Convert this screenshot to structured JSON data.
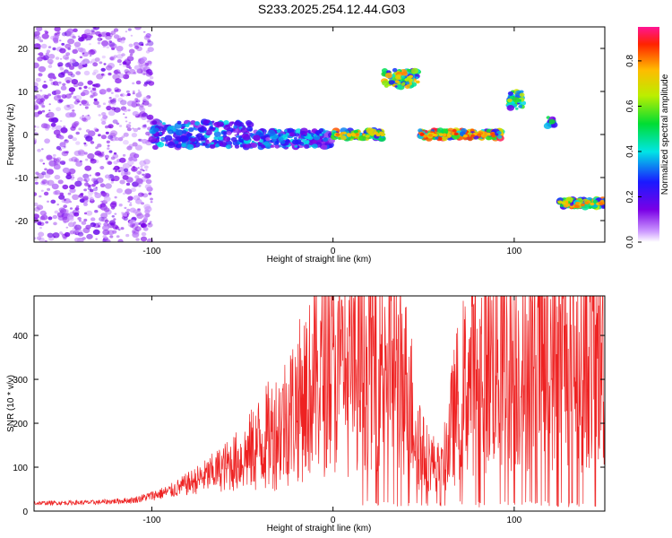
{
  "title": "S233.2025.254.12.44.G03",
  "colors": {
    "snr_line": "#ee2222",
    "frame": "#000000",
    "background": "#ffffff"
  },
  "chart_data": [
    {
      "type": "heatmap",
      "xlabel": "Height of straight line (km)",
      "ylabel": "Frequency (Hz)",
      "xlim": [
        -165,
        150
      ],
      "ylim": [
        -25,
        25
      ],
      "xticks": [
        -100,
        0,
        100
      ],
      "yticks": [
        -20,
        -10,
        0,
        10,
        20
      ],
      "colorbar": {
        "label": "Normalized spectral amplitude",
        "range": [
          0,
          0.95
        ],
        "ticks": [
          0.0,
          0.2,
          0.4,
          0.6,
          0.8
        ]
      },
      "features": [
        {
          "x0": -165,
          "x1": -100,
          "freq_center": 0,
          "freq_spread": 25,
          "amplitude": 0.15,
          "note": "diffuse noise"
        },
        {
          "x0": -100,
          "x1": -45,
          "freq_center": 0,
          "freq_spread": 3,
          "amplitude": 0.35
        },
        {
          "x0": -45,
          "x1": 0,
          "freq_center": -1,
          "freq_spread": 2,
          "amplitude": 0.35
        },
        {
          "x0": 0,
          "x1": 28,
          "freq_center": 0,
          "freq_spread": 1,
          "amplitude": 0.75
        },
        {
          "x0": 28,
          "x1": 47,
          "freq_center": 13,
          "freq_spread": 2,
          "amplitude": 0.7
        },
        {
          "x0": 48,
          "x1": 93,
          "freq_center": 0,
          "freq_spread": 1,
          "amplitude": 0.8
        },
        {
          "x0": 96,
          "x1": 105,
          "freq_center": 8,
          "freq_spread": 2,
          "amplitude": 0.6
        },
        {
          "x0": 118,
          "x1": 122,
          "freq_center": 3,
          "freq_spread": 1,
          "amplitude": 0.5
        },
        {
          "x0": 125,
          "x1": 150,
          "freq_center": -16,
          "freq_spread": 1,
          "amplitude": 0.75
        }
      ]
    },
    {
      "type": "line",
      "xlabel": "Height of straight line (km)",
      "ylabel": "SNR (10 * v/v)",
      "xlim": [
        -165,
        150
      ],
      "ylim": [
        0,
        490
      ],
      "xticks": [
        -100,
        0,
        100
      ],
      "yticks": [
        0,
        100,
        200,
        300,
        400
      ],
      "series": [
        {
          "name": "SNR",
          "envelope_x": [
            -165,
            -130,
            -110,
            -90,
            -70,
            -50,
            -30,
            -15,
            -5,
            5,
            15,
            25,
            30,
            40,
            50,
            60,
            70,
            80,
            90,
            100,
            110,
            120,
            130,
            150
          ],
          "envelope_y": [
            18,
            20,
            25,
            45,
            80,
            120,
            190,
            270,
            310,
            300,
            330,
            365,
            370,
            290,
            130,
            95,
            270,
            330,
            340,
            325,
            340,
            350,
            355,
            345
          ]
        }
      ]
    }
  ]
}
